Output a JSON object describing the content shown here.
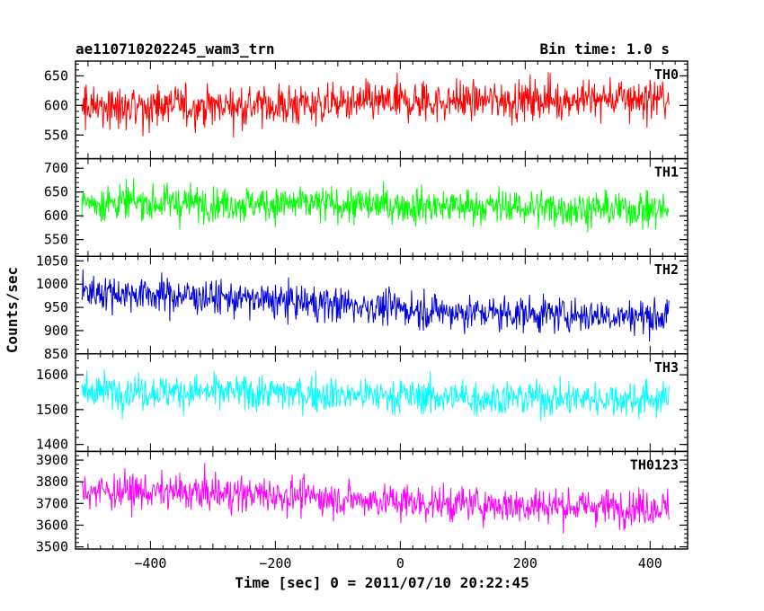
{
  "chart_data": {
    "type": "line",
    "title": "ae110710202245_wam3_trn",
    "subtitle": "Bin time: 1.0 s",
    "xlabel": "Time [sec] 0 = 2011/07/10 20:22:45",
    "ylabel": "Counts/sec",
    "xlim": [
      -520,
      460
    ],
    "x_range": [
      -510,
      430
    ],
    "x_ticks": [
      -400,
      -200,
      0,
      200,
      400
    ],
    "x_tick_labels": [
      "−400",
      "−200",
      "0",
      "200",
      "400"
    ],
    "panels": [
      {
        "name": "TH0",
        "color": "#ff0000",
        "ylim": [
          510,
          675
        ],
        "y_ticks": [
          550,
          600,
          650
        ],
        "y_tick_labels": [
          "550",
          "600",
          "650"
        ],
        "trend": [
          [
            -510,
            598
          ],
          [
            -200,
            600
          ],
          [
            100,
            608
          ],
          [
            430,
            612
          ]
        ],
        "spread": 45
      },
      {
        "name": "TH1",
        "color": "#00ff00",
        "ylim": [
          515,
          720
        ],
        "y_ticks": [
          550,
          600,
          650,
          700
        ],
        "y_tick_labels": [
          "550",
          "600",
          "650",
          "700"
        ],
        "trend": [
          [
            -510,
            628
          ],
          [
            -200,
            625
          ],
          [
            100,
            620
          ],
          [
            430,
            612
          ]
        ],
        "spread": 48
      },
      {
        "name": "TH2",
        "color": "#0000dd",
        "ylim": [
          850,
          1060
        ],
        "y_ticks": [
          850,
          900,
          950,
          1000,
          1050
        ],
        "y_tick_labels": [
          "850",
          "900",
          "950",
          "1000",
          "1050"
        ],
        "trend": [
          [
            -510,
            985
          ],
          [
            -350,
            975
          ],
          [
            -80,
            955
          ],
          [
            80,
            940
          ],
          [
            430,
            930
          ]
        ],
        "spread": 48
      },
      {
        "name": "TH3",
        "color": "#00ffff",
        "ylim": [
          1380,
          1660
        ],
        "y_ticks": [
          1400,
          1500,
          1600
        ],
        "y_tick_labels": [
          "1400",
          "1500",
          "1600"
        ],
        "trend": [
          [
            -510,
            1555
          ],
          [
            -200,
            1548
          ],
          [
            100,
            1535
          ],
          [
            430,
            1530
          ]
        ],
        "spread": 65
      },
      {
        "name": "TH0123",
        "color": "#ff00ff",
        "ylim": [
          3490,
          3940
        ],
        "y_ticks": [
          3500,
          3600,
          3700,
          3800,
          3900
        ],
        "y_tick_labels": [
          "3500",
          "3600",
          "3700",
          "3800",
          "3900"
        ],
        "trend": [
          [
            -510,
            3760
          ],
          [
            -200,
            3740
          ],
          [
            50,
            3700
          ],
          [
            430,
            3680
          ]
        ],
        "spread": 105
      }
    ]
  }
}
